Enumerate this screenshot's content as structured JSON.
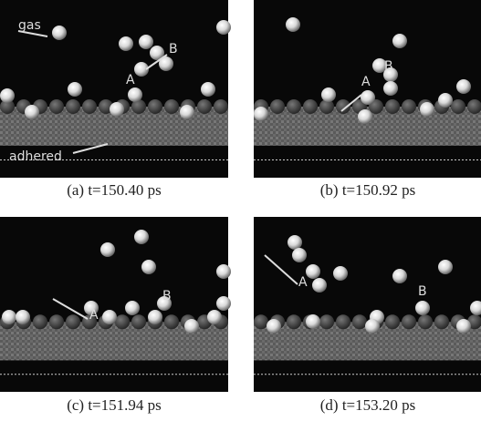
{
  "panels": [
    {
      "caption": "(a) t=150.40 ps",
      "labels": [
        "gas",
        "B",
        "A",
        "adhered"
      ]
    },
    {
      "caption": "(b) t=150.92 ps",
      "labels": [
        "A",
        "B"
      ]
    },
    {
      "caption": "(c) t=151.94 ps",
      "labels": [
        "B",
        "A"
      ]
    },
    {
      "caption": "(d) t=153.20 ps",
      "labels": [
        "A",
        "B"
      ]
    }
  ]
}
